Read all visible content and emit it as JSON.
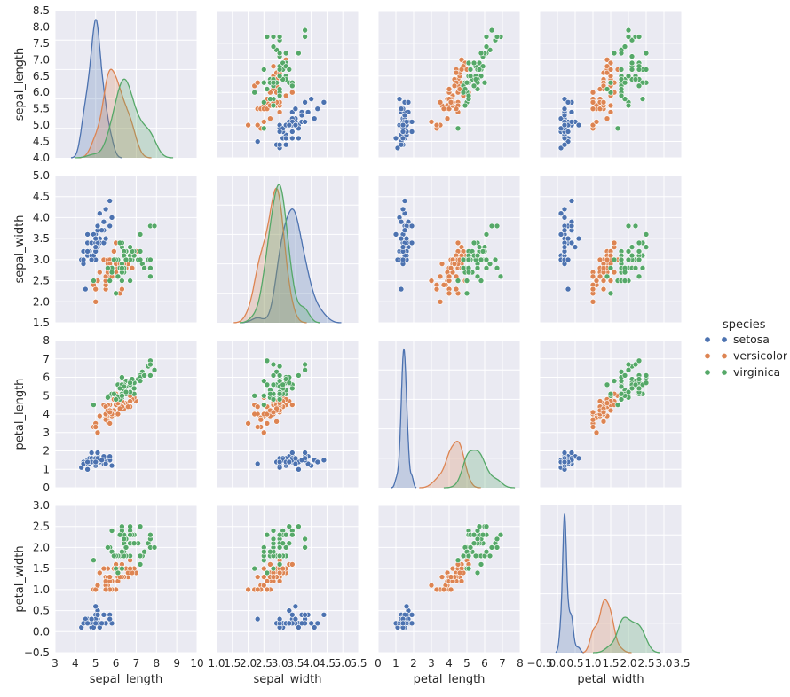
{
  "chart_data": {
    "type": "scatter",
    "subtype": "pairplot",
    "title": "",
    "variables": [
      "sepal_length",
      "sepal_width",
      "petal_length",
      "petal_width"
    ],
    "axis_labels": {
      "x": [
        "sepal_length",
        "sepal_width",
        "petal_length",
        "petal_width"
      ],
      "y": [
        "sepal_length",
        "sepal_width",
        "petal_length",
        "petal_width"
      ]
    },
    "axes": {
      "sepal_length": {
        "lim": [
          3.0,
          10.0
        ],
        "x_ticks": [
          "3",
          "4",
          "5",
          "6",
          "7",
          "8",
          "9",
          "10"
        ],
        "row_lim": [
          4.0,
          8.5
        ],
        "y_ticks": [
          "4.0",
          "4.5",
          "5.0",
          "5.5",
          "6.0",
          "6.5",
          "7.0",
          "7.5",
          "8.0",
          "8.5"
        ]
      },
      "sepal_width": {
        "lim": [
          1.0,
          5.5
        ],
        "x_ticks": [
          "1.0",
          "1.5",
          "2.0",
          "2.5",
          "3.0",
          "3.5",
          "4.0",
          "4.5",
          "5.0",
          "5.5"
        ],
        "row_lim": [
          1.5,
          5.0
        ],
        "y_ticks": [
          "1.5",
          "2.0",
          "2.5",
          "3.0",
          "3.5",
          "4.0",
          "4.5",
          "5.0"
        ]
      },
      "petal_length": {
        "lim": [
          0,
          8
        ],
        "x_ticks": [
          "0",
          "1",
          "2",
          "3",
          "4",
          "5",
          "6",
          "7",
          "8"
        ],
        "row_lim": [
          0,
          8
        ],
        "y_ticks": [
          "0",
          "1",
          "2",
          "3",
          "4",
          "5",
          "6",
          "7",
          "8"
        ]
      },
      "petal_width": {
        "lim": [
          -0.5,
          3.5
        ],
        "x_ticks": [
          "−0.5",
          "0.0",
          "0.5",
          "1.0",
          "1.5",
          "2.0",
          "2.5",
          "3.0",
          "3.5"
        ],
        "row_lim": [
          -0.5,
          3.0
        ],
        "y_ticks": [
          "−0.5",
          "0.0",
          "0.5",
          "1.0",
          "1.5",
          "2.0",
          "2.5",
          "3.0"
        ]
      }
    },
    "grid": true,
    "background_color": "#EAEAF2",
    "diagonal": "kde",
    "legend": {
      "title": "species",
      "placement": "right",
      "entries": [
        "setosa",
        "versicolor",
        "virginica"
      ]
    },
    "series": [
      {
        "name": "setosa",
        "color": "#4C72B0",
        "kde_peak_mode": {
          "sepal_length": 5.0,
          "sepal_width": 3.4,
          "petal_length": 1.46,
          "petal_width": 0.24
        },
        "points": [
          [
            5.1,
            3.5,
            1.4,
            0.2
          ],
          [
            4.9,
            3.0,
            1.4,
            0.2
          ],
          [
            4.7,
            3.2,
            1.3,
            0.2
          ],
          [
            4.6,
            3.1,
            1.5,
            0.2
          ],
          [
            5.0,
            3.6,
            1.4,
            0.2
          ],
          [
            5.4,
            3.9,
            1.7,
            0.4
          ],
          [
            4.6,
            3.4,
            1.4,
            0.3
          ],
          [
            5.0,
            3.4,
            1.5,
            0.2
          ],
          [
            4.4,
            2.9,
            1.4,
            0.2
          ],
          [
            4.9,
            3.1,
            1.5,
            0.1
          ],
          [
            5.4,
            3.7,
            1.5,
            0.2
          ],
          [
            4.8,
            3.4,
            1.6,
            0.2
          ],
          [
            4.8,
            3.0,
            1.4,
            0.1
          ],
          [
            4.3,
            3.0,
            1.1,
            0.1
          ],
          [
            5.8,
            4.0,
            1.2,
            0.2
          ],
          [
            5.7,
            4.4,
            1.5,
            0.4
          ],
          [
            5.4,
            3.9,
            1.3,
            0.4
          ],
          [
            5.1,
            3.5,
            1.4,
            0.3
          ],
          [
            5.7,
            3.8,
            1.7,
            0.3
          ],
          [
            5.1,
            3.8,
            1.5,
            0.3
          ],
          [
            5.4,
            3.4,
            1.7,
            0.2
          ],
          [
            5.1,
            3.7,
            1.5,
            0.4
          ],
          [
            4.6,
            3.6,
            1.0,
            0.2
          ],
          [
            5.1,
            3.3,
            1.7,
            0.5
          ],
          [
            4.8,
            3.4,
            1.9,
            0.2
          ],
          [
            5.0,
            3.0,
            1.6,
            0.2
          ],
          [
            5.0,
            3.4,
            1.6,
            0.4
          ],
          [
            5.2,
            3.5,
            1.5,
            0.2
          ],
          [
            5.2,
            3.4,
            1.4,
            0.2
          ],
          [
            4.7,
            3.2,
            1.6,
            0.2
          ],
          [
            4.8,
            3.1,
            1.6,
            0.2
          ],
          [
            5.4,
            3.4,
            1.5,
            0.4
          ],
          [
            5.2,
            4.1,
            1.5,
            0.1
          ],
          [
            5.5,
            4.2,
            1.4,
            0.2
          ],
          [
            4.9,
            3.1,
            1.5,
            0.2
          ],
          [
            5.0,
            3.2,
            1.2,
            0.2
          ],
          [
            5.5,
            3.5,
            1.3,
            0.2
          ],
          [
            4.9,
            3.6,
            1.4,
            0.1
          ],
          [
            4.4,
            3.0,
            1.3,
            0.2
          ],
          [
            5.1,
            3.4,
            1.5,
            0.2
          ],
          [
            5.0,
            3.5,
            1.3,
            0.3
          ],
          [
            4.5,
            2.3,
            1.3,
            0.3
          ],
          [
            4.4,
            3.2,
            1.3,
            0.2
          ],
          [
            5.0,
            3.5,
            1.6,
            0.6
          ],
          [
            5.1,
            3.8,
            1.9,
            0.4
          ],
          [
            4.8,
            3.0,
            1.4,
            0.3
          ],
          [
            5.1,
            3.8,
            1.6,
            0.2
          ],
          [
            4.6,
            3.2,
            1.4,
            0.2
          ],
          [
            5.3,
            3.7,
            1.5,
            0.2
          ],
          [
            5.0,
            3.3,
            1.4,
            0.2
          ]
        ]
      },
      {
        "name": "versicolor",
        "color": "#DD8452",
        "kde_peak_mode": {
          "sepal_length": 5.9,
          "sepal_width": 2.8,
          "petal_length": 4.3,
          "petal_width": 1.3
        },
        "points": [
          [
            7.0,
            3.2,
            4.7,
            1.4
          ],
          [
            6.4,
            3.2,
            4.5,
            1.5
          ],
          [
            6.9,
            3.1,
            4.9,
            1.5
          ],
          [
            5.5,
            2.3,
            4.0,
            1.3
          ],
          [
            6.5,
            2.8,
            4.6,
            1.5
          ],
          [
            5.7,
            2.8,
            4.5,
            1.3
          ],
          [
            6.3,
            3.3,
            4.7,
            1.6
          ],
          [
            4.9,
            2.4,
            3.3,
            1.0
          ],
          [
            6.6,
            2.9,
            4.6,
            1.3
          ],
          [
            5.2,
            2.7,
            3.9,
            1.4
          ],
          [
            5.0,
            2.0,
            3.5,
            1.0
          ],
          [
            5.9,
            3.0,
            4.2,
            1.5
          ],
          [
            6.0,
            2.2,
            4.0,
            1.0
          ],
          [
            6.1,
            2.9,
            4.7,
            1.4
          ],
          [
            5.6,
            2.9,
            3.6,
            1.3
          ],
          [
            6.7,
            3.1,
            4.4,
            1.4
          ],
          [
            5.6,
            3.0,
            4.5,
            1.5
          ],
          [
            5.8,
            2.7,
            4.1,
            1.0
          ],
          [
            6.2,
            2.2,
            4.5,
            1.5
          ],
          [
            5.6,
            2.5,
            3.9,
            1.1
          ],
          [
            5.9,
            3.2,
            4.8,
            1.8
          ],
          [
            6.1,
            2.8,
            4.0,
            1.3
          ],
          [
            6.3,
            2.5,
            4.9,
            1.5
          ],
          [
            6.1,
            2.8,
            4.7,
            1.2
          ],
          [
            6.4,
            2.9,
            4.3,
            1.3
          ],
          [
            6.6,
            3.0,
            4.4,
            1.4
          ],
          [
            6.8,
            2.8,
            4.8,
            1.4
          ],
          [
            6.7,
            3.0,
            5.0,
            1.7
          ],
          [
            6.0,
            2.9,
            4.5,
            1.5
          ],
          [
            5.7,
            2.6,
            3.5,
            1.0
          ],
          [
            5.5,
            2.4,
            3.8,
            1.1
          ],
          [
            5.5,
            2.4,
            3.7,
            1.0
          ],
          [
            5.8,
            2.7,
            3.9,
            1.2
          ],
          [
            6.0,
            2.7,
            5.1,
            1.6
          ],
          [
            5.4,
            3.0,
            4.5,
            1.5
          ],
          [
            6.0,
            3.4,
            4.5,
            1.6
          ],
          [
            6.7,
            3.1,
            4.7,
            1.5
          ],
          [
            6.3,
            2.3,
            4.4,
            1.3
          ],
          [
            5.6,
            3.0,
            4.1,
            1.3
          ],
          [
            5.5,
            2.5,
            4.0,
            1.3
          ],
          [
            5.5,
            2.6,
            4.4,
            1.2
          ],
          [
            6.1,
            3.0,
            4.6,
            1.4
          ],
          [
            5.8,
            2.6,
            4.0,
            1.2
          ],
          [
            5.0,
            2.3,
            3.3,
            1.0
          ],
          [
            5.6,
            2.7,
            4.2,
            1.3
          ],
          [
            5.7,
            3.0,
            4.2,
            1.2
          ],
          [
            5.7,
            2.9,
            4.2,
            1.3
          ],
          [
            6.2,
            2.9,
            4.3,
            1.3
          ],
          [
            5.1,
            2.5,
            3.0,
            1.1
          ],
          [
            5.7,
            2.8,
            4.1,
            1.3
          ]
        ]
      },
      {
        "name": "virginica",
        "color": "#55A868",
        "kde_peak_mode": {
          "sepal_length": 6.5,
          "sepal_width": 3.0,
          "petal_length": 5.5,
          "petal_width": 2.0
        },
        "points": [
          [
            6.3,
            3.3,
            6.0,
            2.5
          ],
          [
            5.8,
            2.7,
            5.1,
            1.9
          ],
          [
            7.1,
            3.0,
            5.9,
            2.1
          ],
          [
            6.3,
            2.9,
            5.6,
            1.8
          ],
          [
            6.5,
            3.0,
            5.8,
            2.2
          ],
          [
            7.6,
            3.0,
            6.6,
            2.1
          ],
          [
            4.9,
            2.5,
            4.5,
            1.7
          ],
          [
            7.3,
            2.9,
            6.3,
            1.8
          ],
          [
            6.7,
            2.5,
            5.8,
            1.8
          ],
          [
            7.2,
            3.6,
            6.1,
            2.5
          ],
          [
            6.5,
            3.2,
            5.1,
            2.0
          ],
          [
            6.4,
            2.7,
            5.3,
            1.9
          ],
          [
            6.8,
            3.0,
            5.5,
            2.1
          ],
          [
            5.7,
            2.5,
            5.0,
            2.0
          ],
          [
            5.8,
            2.8,
            5.1,
            2.4
          ],
          [
            6.4,
            3.2,
            5.3,
            2.3
          ],
          [
            6.5,
            3.0,
            5.5,
            1.8
          ],
          [
            7.7,
            3.8,
            6.7,
            2.2
          ],
          [
            7.7,
            2.6,
            6.9,
            2.3
          ],
          [
            6.0,
            2.2,
            5.0,
            1.5
          ],
          [
            6.9,
            3.2,
            5.7,
            2.3
          ],
          [
            5.6,
            2.8,
            4.9,
            2.0
          ],
          [
            7.7,
            2.8,
            6.7,
            2.0
          ],
          [
            6.3,
            2.7,
            4.9,
            1.8
          ],
          [
            6.7,
            3.3,
            5.7,
            2.1
          ],
          [
            7.2,
            3.2,
            6.0,
            1.8
          ],
          [
            6.2,
            2.8,
            4.8,
            1.8
          ],
          [
            6.1,
            3.0,
            4.9,
            1.8
          ],
          [
            6.4,
            2.8,
            5.6,
            2.1
          ],
          [
            7.2,
            3.0,
            5.8,
            1.6
          ],
          [
            7.4,
            2.8,
            6.1,
            1.9
          ],
          [
            7.9,
            3.8,
            6.4,
            2.0
          ],
          [
            6.4,
            2.8,
            5.6,
            2.2
          ],
          [
            6.3,
            2.8,
            5.1,
            1.5
          ],
          [
            6.1,
            2.6,
            5.6,
            1.4
          ],
          [
            7.7,
            3.0,
            6.1,
            2.3
          ],
          [
            6.3,
            3.4,
            5.6,
            2.4
          ],
          [
            6.4,
            3.1,
            5.5,
            1.8
          ],
          [
            6.0,
            3.0,
            4.8,
            1.8
          ],
          [
            6.9,
            3.1,
            5.4,
            2.1
          ],
          [
            6.7,
            3.1,
            5.6,
            2.4
          ],
          [
            6.9,
            3.1,
            5.1,
            2.3
          ],
          [
            5.8,
            2.7,
            5.1,
            1.9
          ],
          [
            6.8,
            3.2,
            5.9,
            2.3
          ],
          [
            6.7,
            3.3,
            5.7,
            2.5
          ],
          [
            6.7,
            3.0,
            5.2,
            2.3
          ],
          [
            6.3,
            2.5,
            5.0,
            1.9
          ],
          [
            6.5,
            3.0,
            5.2,
            2.0
          ],
          [
            6.2,
            3.4,
            5.4,
            2.3
          ],
          [
            5.9,
            3.0,
            5.1,
            1.8
          ]
        ]
      }
    ]
  }
}
